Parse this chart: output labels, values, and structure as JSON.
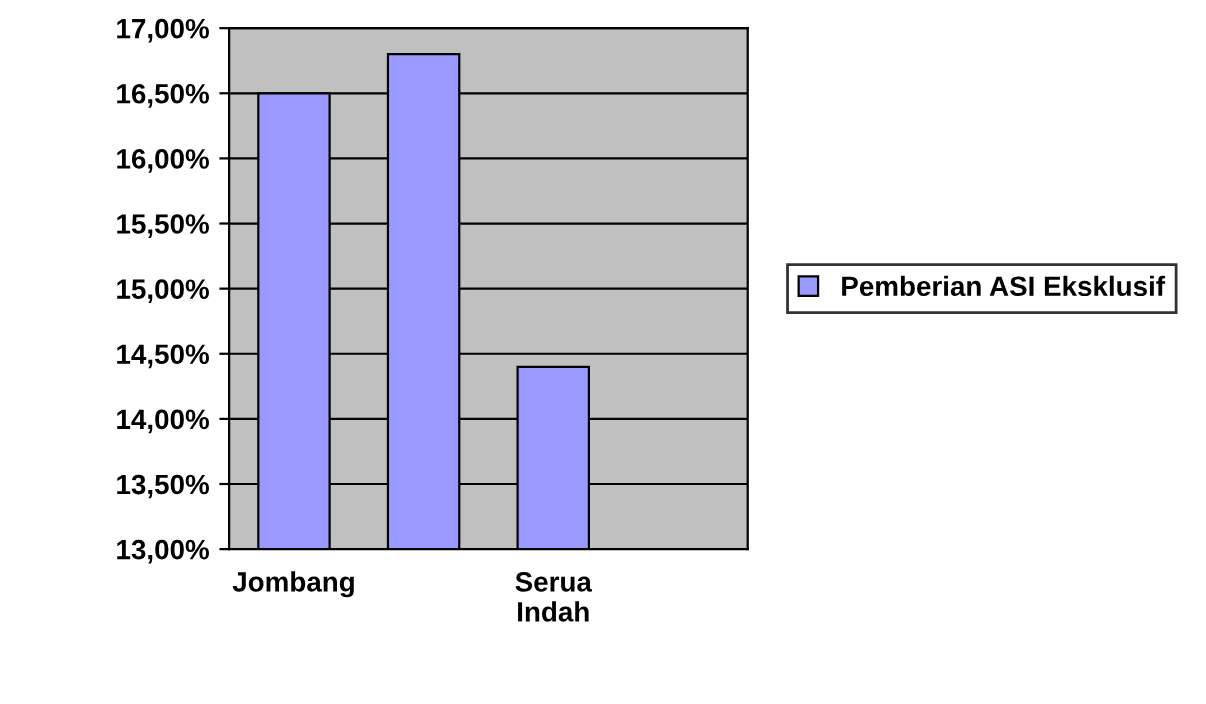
{
  "chart_data": {
    "type": "bar",
    "categories": [
      "Jombang",
      null,
      "Serua Indah",
      null
    ],
    "series": [
      {
        "name": "Pemberian ASI Eksklusif",
        "color": "#9999ff",
        "values": [
          16.5,
          16.8,
          14.4,
          null
        ]
      }
    ],
    "ylim": [
      13,
      17
    ],
    "yticks": [
      {
        "value": 13,
        "label": "13,00%"
      },
      {
        "value": 13.5,
        "label": "13,50%"
      },
      {
        "value": 14,
        "label": "14,00%"
      },
      {
        "value": 14.5,
        "label": "14,50%"
      },
      {
        "value": 15,
        "label": "15,00%"
      },
      {
        "value": 15.5,
        "label": "15,50%"
      },
      {
        "value": 16,
        "label": "16,00%"
      },
      {
        "value": 16.5,
        "label": "16,50%"
      },
      {
        "value": 17,
        "label": "17,00%"
      }
    ],
    "grid": "y",
    "legend": "right"
  }
}
